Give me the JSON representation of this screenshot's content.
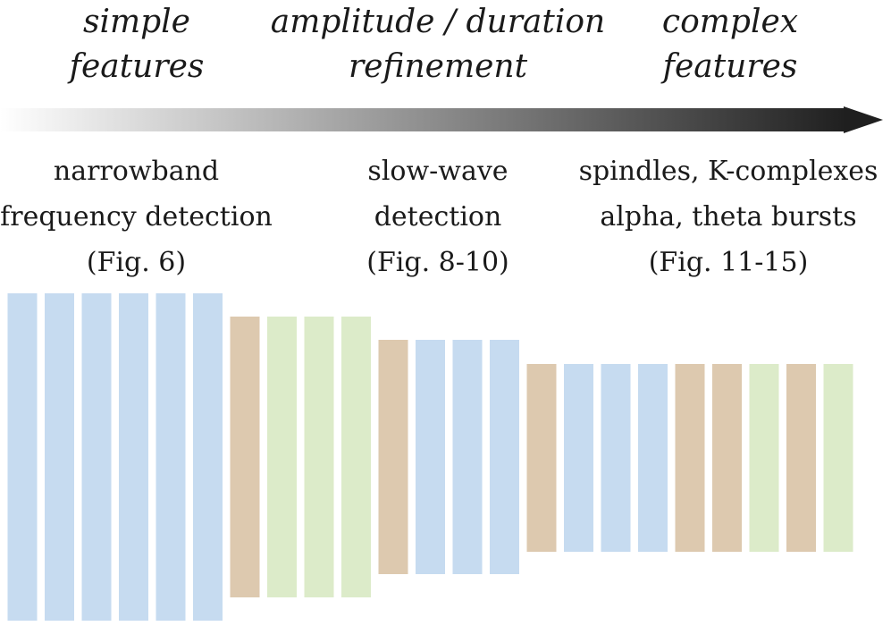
{
  "stages": [
    {
      "top_lines": [
        "simple",
        "features"
      ],
      "bottom_lines": [
        "narrowband",
        "frequency detection",
        "(Fig. 6)"
      ]
    },
    {
      "top_lines": [
        "amplitude / duration",
        "refinement"
      ],
      "bottom_lines": [
        "slow-wave",
        "detection",
        "(Fig. 8-10)"
      ]
    },
    {
      "top_lines": [
        "complex",
        "features"
      ],
      "bottom_lines": [
        "spindles, K-complexes",
        "alpha, theta bursts",
        "(Fig. 11-15)"
      ]
    }
  ],
  "colors": {
    "blue": "#c6dbf0",
    "tan": "#ddc9af",
    "green": "#dcebc9",
    "arrow_start": "#ffffff",
    "arrow_end": "#1f1f1f"
  },
  "layers": [
    {
      "bars": [
        "blue",
        "blue",
        "blue",
        "blue",
        "blue",
        "blue"
      ]
    },
    {
      "bars": [
        "tan",
        "green",
        "green",
        "green"
      ]
    },
    {
      "bars": [
        "tan",
        "blue",
        "blue",
        "blue"
      ]
    },
    {
      "bars": [
        "tan",
        "blue",
        "blue",
        "blue",
        "tan",
        "tan",
        "green",
        "tan",
        "green"
      ]
    }
  ]
}
